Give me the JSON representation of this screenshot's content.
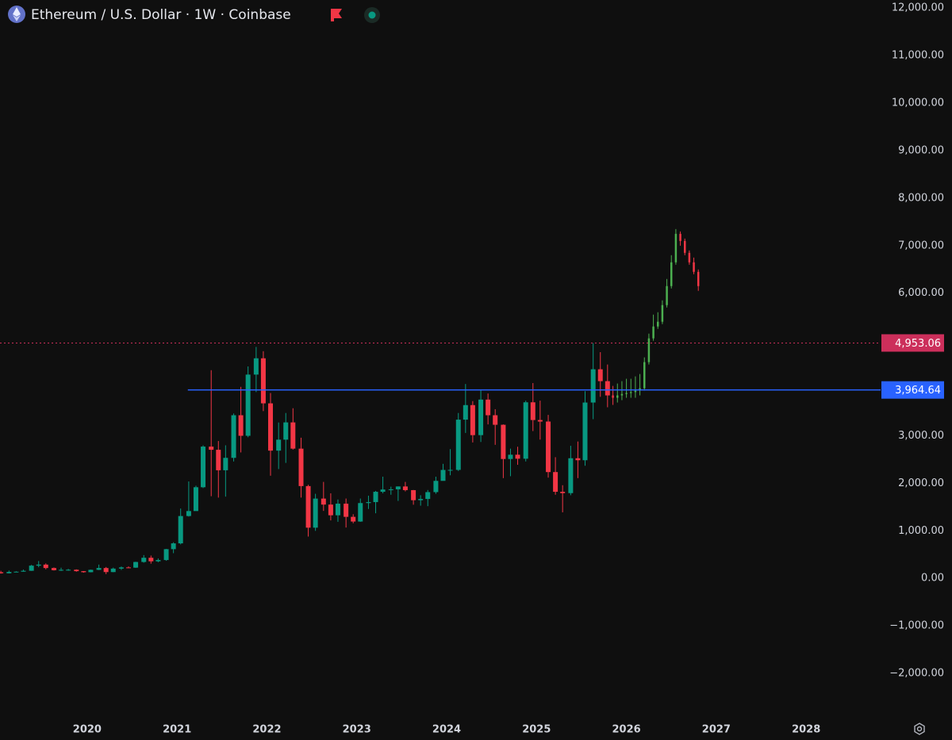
{
  "chart_data": {
    "type": "candlestick",
    "title": "Ethereum / U.S. Dollar · 1W · Coinbase",
    "up_color": "#089981",
    "down_color": "#f23645",
    "grid": false,
    "xlim": [
      2019.03,
      2028.74
    ],
    "xticks": [
      2020,
      2021,
      2022,
      2023,
      2024,
      2025,
      2026,
      2027,
      2028
    ],
    "ylim": [
      -2850,
      12170
    ],
    "yticks": [
      {
        "value": -2000,
        "label": "−2,000.00"
      },
      {
        "value": -1000,
        "label": "−1,000.00"
      },
      {
        "value": 0,
        "label": "0.00"
      },
      {
        "value": 1000,
        "label": "1,000.00"
      },
      {
        "value": 2000,
        "label": "2,000.00"
      },
      {
        "value": 3000,
        "label": "3,000.00"
      },
      {
        "value": 4000,
        "label": "4,000.00"
      },
      {
        "value": 5000,
        "label": "5,000.00"
      },
      {
        "value": 6000,
        "label": "6,000.00"
      },
      {
        "value": 7000,
        "label": "7,000.00"
      },
      {
        "value": 8000,
        "label": "8,000.00"
      },
      {
        "value": 9000,
        "label": "9,000.00"
      },
      {
        "value": 10000,
        "label": "10,000.00"
      },
      {
        "value": 11000,
        "label": "11,000.00"
      },
      {
        "value": 12000,
        "label": "12,000.00"
      }
    ],
    "candles": {
      "x": [
        2019.04,
        2019.13,
        2019.21,
        2019.29,
        2019.38,
        2019.46,
        2019.54,
        2019.63,
        2019.71,
        2019.79,
        2019.88,
        2019.96,
        2020.04,
        2020.13,
        2020.21,
        2020.29,
        2020.38,
        2020.46,
        2020.54,
        2020.63,
        2020.71,
        2020.79,
        2020.88,
        2020.96,
        2021.04,
        2021.13,
        2021.21,
        2021.29,
        2021.38,
        2021.46,
        2021.54,
        2021.63,
        2021.71,
        2021.79,
        2021.88,
        2021.96,
        2022.04,
        2022.13,
        2022.21,
        2022.29,
        2022.38,
        2022.46,
        2022.54,
        2022.63,
        2022.71,
        2022.79,
        2022.88,
        2022.96,
        2023.04,
        2023.13,
        2023.21,
        2023.29,
        2023.38,
        2023.46,
        2023.54,
        2023.63,
        2023.71,
        2023.79,
        2023.88,
        2023.96,
        2024.04,
        2024.13,
        2024.21,
        2024.29,
        2024.38,
        2024.46,
        2024.54,
        2024.63,
        2024.71,
        2024.79,
        2024.88,
        2024.96,
        2025.04,
        2025.13,
        2025.21,
        2025.29,
        2025.38,
        2025.46,
        2025.54,
        2025.63,
        2025.71,
        2025.79
      ],
      "open": [
        130,
        107,
        136,
        141,
        160,
        268,
        290,
        218,
        172,
        180,
        182,
        152,
        130,
        180,
        218,
        133,
        206,
        231,
        226,
        345,
        434,
        359,
        386,
        615,
        737,
        1312,
        1417,
        1918,
        2773,
        2706,
        2275,
        2536,
        3433,
        3000,
        4288,
        4631,
        3683,
        2688,
        2919,
        3282,
        2730,
        1942,
        1067,
        1679,
        1553,
        1328,
        1572,
        1295,
        1196,
        1585,
        1605,
        1822,
        1870,
        1874,
        1934,
        1857,
        1645,
        1671,
        1815,
        2052,
        2282,
        2283,
        3340,
        3646,
        3014,
        3762,
        3433,
        3232,
        2512,
        2602,
        2518,
        3705,
        3332,
        3300,
        2237,
        1822,
        1794,
        2528,
        2486,
        3700,
        4400,
        4150
      ],
      "high": [
        160,
        165,
        150,
        185,
        285,
        365,
        315,
        230,
        225,
        200,
        190,
        155,
        185,
        290,
        240,
        227,
        250,
        252,
        350,
        490,
        480,
        420,
        620,
        760,
        1470,
        2040,
        1950,
        2800,
        4380,
        2890,
        2800,
        3470,
        4030,
        4460,
        4870,
        4780,
        3900,
        3280,
        3480,
        3580,
        2960,
        1970,
        1780,
        2030,
        1790,
        1660,
        1680,
        1350,
        1680,
        1740,
        1840,
        2140,
        1930,
        1935,
        2030,
        1860,
        1750,
        1860,
        2140,
        2410,
        2720,
        3480,
        4090,
        3730,
        3970,
        3890,
        3560,
        3240,
        2730,
        2770,
        3740,
        4110,
        3740,
        3440,
        2550,
        1960,
        2790,
        2880,
        3940,
        4950,
        4760,
        4500
      ],
      "low": [
        100,
        104,
        128,
        140,
        158,
        235,
        190,
        165,
        155,
        160,
        140,
        120,
        127,
        175,
        90,
        130,
        178,
        215,
        220,
        330,
        310,
        340,
        370,
        530,
        715,
        1300,
        1450,
        1900,
        1730,
        1700,
        1720,
        2460,
        2650,
        2970,
        3920,
        3520,
        2160,
        2300,
        2430,
        2710,
        1700,
        880,
        1000,
        1420,
        1220,
        1190,
        1070,
        1160,
        1190,
        1460,
        1370,
        1790,
        1760,
        1630,
        1830,
        1550,
        1530,
        1520,
        1780,
        2150,
        2170,
        2260,
        3060,
        2860,
        2870,
        3240,
        2810,
        2110,
        2150,
        2390,
        2460,
        3100,
        2920,
        2120,
        1760,
        1390,
        1750,
        2110,
        2370,
        3350,
        3820,
        3600
      ],
      "close": [
        107,
        136,
        141,
        160,
        268,
        290,
        218,
        172,
        180,
        182,
        152,
        130,
        180,
        218,
        133,
        206,
        231,
        226,
        345,
        434,
        359,
        386,
        615,
        737,
        1312,
        1417,
        1918,
        2773,
        2706,
        2275,
        2536,
        3433,
        3000,
        4288,
        4631,
        3683,
        2688,
        2919,
        3282,
        2730,
        1942,
        1067,
        1679,
        1553,
        1328,
        1572,
        1295,
        1196,
        1585,
        1605,
        1822,
        1870,
        1874,
        1934,
        1857,
        1645,
        1671,
        1815,
        2052,
        2282,
        2283,
        3340,
        3646,
        3014,
        3762,
        3433,
        3232,
        2512,
        2602,
        2518,
        3705,
        3332,
        3300,
        2237,
        1822,
        1794,
        2528,
        2486,
        3700,
        4400,
        4150,
        3850
      ]
    },
    "projection": {
      "up_color": "#4caf50",
      "down_color": "#f23645",
      "x": [
        2025.85,
        2025.9,
        2025.95,
        2026.0,
        2026.05,
        2026.1,
        2026.15,
        2026.2,
        2026.25,
        2026.3,
        2026.35,
        2026.4,
        2026.45,
        2026.5,
        2026.55,
        2026.6,
        2026.65,
        2026.7,
        2026.75,
        2026.8
      ],
      "open": [
        3850,
        3800,
        3850,
        3880,
        3900,
        3920,
        3950,
        4000,
        4550,
        5050,
        5300,
        5400,
        5750,
        6150,
        6650,
        7250,
        7100,
        6850,
        6650,
        6450
      ],
      "high": [
        4050,
        4100,
        4150,
        4200,
        4200,
        4250,
        4300,
        4650,
        5150,
        5550,
        5600,
        5850,
        6300,
        6800,
        7350,
        7300,
        7150,
        6900,
        6750,
        6500
      ],
      "low": [
        3650,
        3700,
        3750,
        3800,
        3800,
        3800,
        3850,
        3950,
        4500,
        5000,
        5250,
        5350,
        5700,
        6100,
        6600,
        7000,
        6800,
        6600,
        6400,
        6050
      ],
      "close": [
        3800,
        3850,
        3880,
        3900,
        3920,
        3950,
        4000,
        4550,
        5050,
        5300,
        5400,
        5750,
        6150,
        6650,
        7250,
        7100,
        6850,
        6650,
        6450,
        6150
      ]
    },
    "levels": [
      {
        "value": 4953.06,
        "label": "4,953.06",
        "color": "#cc2f5b",
        "dashed": true,
        "x_start": 2019.03
      },
      {
        "value": 3964.64,
        "label": "3,964.64",
        "color": "#2962ff",
        "dashed": false,
        "x_start": 2021.12
      }
    ]
  }
}
